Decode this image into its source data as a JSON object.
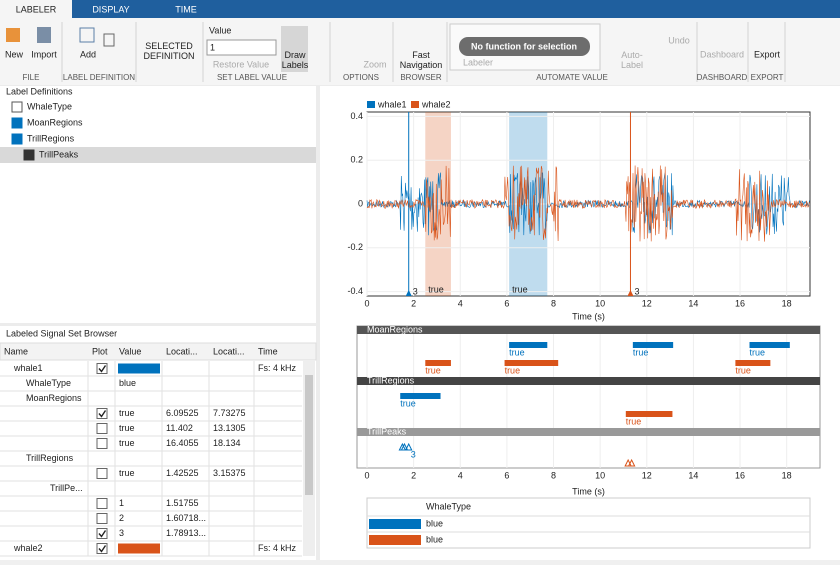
{
  "tabs": [
    "LABELER",
    "DISPLAY",
    "TIME"
  ],
  "toolstrip": {
    "new": "New",
    "import": "Import",
    "file": "FILE",
    "add": "Add",
    "label_definition": "LABEL DEFINITION",
    "selected_definition": "SELECTED DEFINITION",
    "value_label": "Value",
    "value_input": "1",
    "restore_value": "Restore Value",
    "draw_labels": "Draw Labels",
    "set_label_value": "SET LABEL VALUE",
    "zoom": "Zoom",
    "options": "OPTIONS",
    "fast_navigation": "Fast Navigation",
    "browser": "BROWSER",
    "automation": "No function for selection",
    "labeler": "Labeler",
    "auto_label": "Auto-Label",
    "undo": "Undo",
    "automate_value": "AUTOMATE VALUE",
    "dashboard": "Dashboard",
    "dashboard_section": "DASHBOARD",
    "export": "Export",
    "export_section": "EXPORT"
  },
  "label_definitions": {
    "title": "Label Definitions",
    "items": [
      "WhaleType",
      "MoanRegions",
      "TrillRegions",
      "TrillPeaks"
    ]
  },
  "browser": {
    "title": "Labeled Signal Set Browser",
    "columns": [
      "Name",
      "Plot",
      "Value",
      "Locati...",
      "Locati...",
      "Time"
    ],
    "rows": [
      {
        "name": "whale1",
        "level": 0,
        "checked": true,
        "color": "#0072bd",
        "time": "Fs: 4 kHz"
      },
      {
        "name": "WhaleType",
        "level": 1,
        "value": "blue"
      },
      {
        "name": "MoanRegions",
        "level": 1
      },
      {
        "level": 2,
        "checked": true,
        "value": "true",
        "loc1": 6.09525,
        "loc2": 7.73275
      },
      {
        "level": 2,
        "checked": false,
        "value": "true",
        "loc1": 11.402,
        "loc2": 13.1305
      },
      {
        "level": 2,
        "checked": false,
        "value": "true",
        "loc1": 16.4055,
        "loc2": 18.134
      },
      {
        "name": "TrillRegions",
        "level": 1
      },
      {
        "level": 2,
        "checked": false,
        "value": "true",
        "loc1": 1.42525,
        "loc2": 3.15375
      },
      {
        "name": "TrillPe...",
        "level": 3
      },
      {
        "level": 4,
        "checked": false,
        "value": 1,
        "loc1": 1.51755
      },
      {
        "level": 4,
        "checked": false,
        "value": 2,
        "loc1": "1.60718..."
      },
      {
        "level": 4,
        "checked": true,
        "value": 3,
        "loc1": "1.78913..."
      },
      {
        "name": "whale2",
        "level": 0,
        "checked": true,
        "color": "#d95319",
        "time": "Fs: 4 kHz"
      }
    ]
  },
  "chart_data": [
    {
      "type": "line",
      "series": [
        {
          "name": "whale1",
          "color": "#0072bd"
        },
        {
          "name": "whale2",
          "color": "#d95319"
        }
      ],
      "xlim": [
        0,
        19
      ],
      "ylim": [
        -0.42,
        0.42
      ],
      "xticks": [
        0,
        2,
        4,
        6,
        8,
        10,
        12,
        14,
        16,
        18
      ],
      "yticks": [
        -0.4,
        -0.2,
        0,
        0.2,
        0.4
      ],
      "xlabel": "Time (s)",
      "regions": [
        {
          "start": 2.5,
          "end": 3.6,
          "color": "#d95319",
          "label": "true"
        },
        {
          "start": 6.09525,
          "end": 7.73275,
          "color": "#0072bd",
          "label": "true"
        }
      ],
      "markers": [
        {
          "x": 1.78913,
          "color": "#0072bd",
          "label": 3
        },
        {
          "x": 11.3,
          "color": "#d95319",
          "label": 3
        }
      ]
    },
    {
      "type": "timeline",
      "xlim": [
        0,
        19
      ],
      "xticks": [
        0,
        2,
        4,
        6,
        8,
        10,
        12,
        14,
        16,
        18
      ],
      "xlabel": "Time (s)",
      "tracks": [
        {
          "name": "MoanRegions",
          "bars": [
            {
              "start": 6.09525,
              "end": 7.73275,
              "color": "#0072bd",
              "label": "true"
            },
            {
              "start": 11.402,
              "end": 13.1305,
              "color": "#0072bd",
              "label": "true"
            },
            {
              "start": 16.4055,
              "end": 18.134,
              "color": "#0072bd",
              "label": "true"
            },
            {
              "start": 2.5,
              "end": 3.6,
              "color": "#d95319",
              "label": "true"
            },
            {
              "start": 5.9,
              "end": 8.2,
              "color": "#d95319",
              "label": "true"
            },
            {
              "start": 15.8,
              "end": 17.3,
              "color": "#d95319",
              "label": "true"
            }
          ]
        },
        {
          "name": "TrillRegions",
          "bars": [
            {
              "start": 1.42525,
              "end": 3.15375,
              "color": "#0072bd",
              "label": "true"
            },
            {
              "start": 11.1,
              "end": 13.1,
              "color": "#d95319",
              "label": "true"
            }
          ]
        },
        {
          "name": "TrillPeaks",
          "points": [
            {
              "x": 1.51755,
              "color": "#0072bd"
            },
            {
              "x": 1.60718,
              "color": "#0072bd"
            },
            {
              "x": 1.78913,
              "color": "#0072bd",
              "label": 3
            },
            {
              "x": 11.2,
              "color": "#d95319"
            },
            {
              "x": 11.35,
              "color": "#d95319"
            }
          ]
        }
      ]
    }
  ],
  "whale_type_table": {
    "header": "WhaleType",
    "rows": [
      {
        "color": "#0072bd",
        "value": "blue"
      },
      {
        "color": "#d95319",
        "value": "blue"
      }
    ]
  }
}
